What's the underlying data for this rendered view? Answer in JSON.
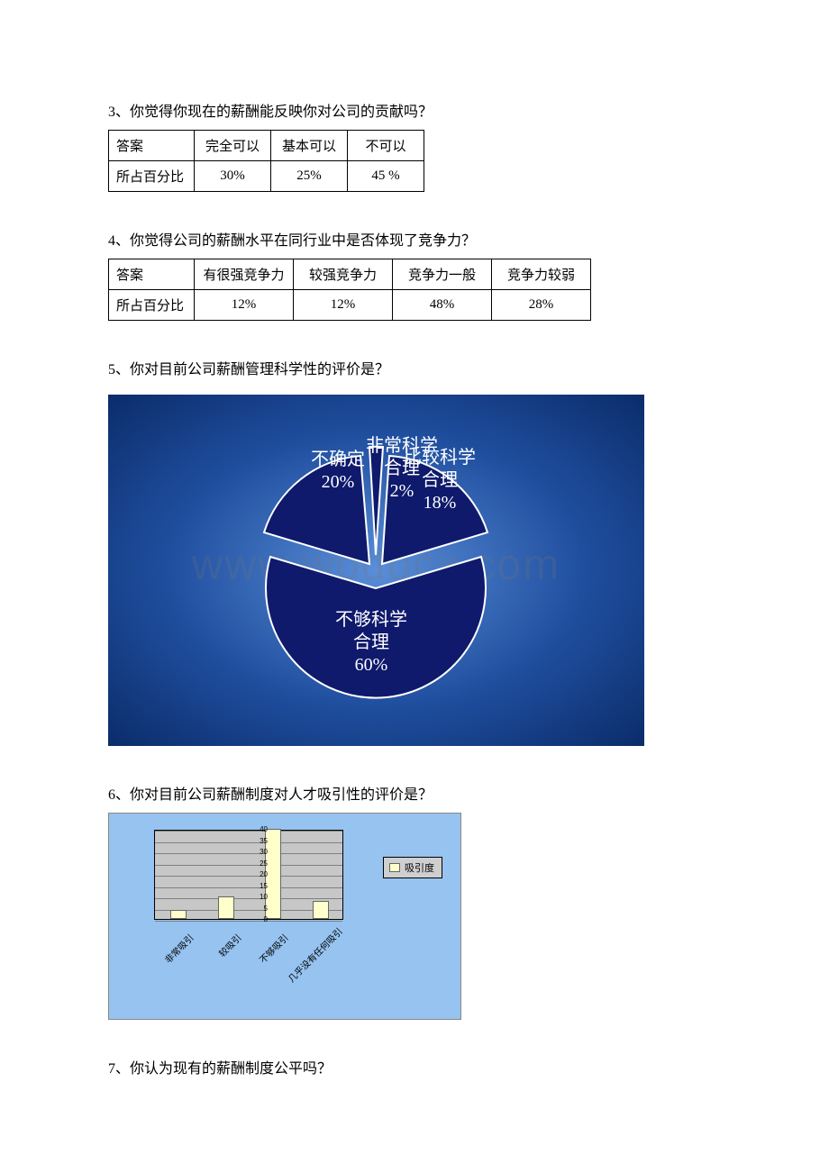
{
  "q3": {
    "title": "3、你觉得你现在的薪酬能反映你对公司的贡献吗？",
    "row1": [
      "答案",
      "完全可以",
      "基本可以",
      "不可以"
    ],
    "row2": [
      "所占百分比",
      "30%",
      "25%",
      "45 %"
    ]
  },
  "q4": {
    "title": "4、你觉得公司的薪酬水平在同行业中是否体现了竞争力？",
    "row1": [
      "答案",
      "有很强竞争力",
      "较强竞争力",
      "竞争力一般",
      "竞争力较弱"
    ],
    "row2": [
      "所占百分比",
      "12%",
      "12%",
      "48%",
      "28%"
    ]
  },
  "q5": {
    "title": "5、你对目前公司薪酬管理科学性的评价是？",
    "chart": {
      "type": "pie",
      "background": "radial #5a8ed8 -> #0b2c6a",
      "slices": [
        {
          "label_l1": "非常科学",
          "label_l2": "合理",
          "pct_label": "2%",
          "value": 2,
          "color": "#101a6b"
        },
        {
          "label_l1": "比较科学",
          "label_l2": "合理",
          "pct_label": "18%",
          "value": 18,
          "color": "#101a6b"
        },
        {
          "label_l1": "不够科学",
          "label_l2": "合理",
          "pct_label": "60%",
          "value": 60,
          "color": "#101a6b"
        },
        {
          "label_l1": "不确定",
          "label_l2": "",
          "pct_label": "20%",
          "value": 20,
          "color": "#101a6b"
        }
      ],
      "text_color": "#ffffff",
      "label_fontsize": 20,
      "watermark": "www.wodocx.com"
    }
  },
  "q6": {
    "title": "6、你对目前公司薪酬制度对人才吸引性的评价是？",
    "chart": {
      "type": "bar",
      "background_color": "#96c3f0",
      "plot_bg": "#c7c7c7",
      "bar_color": "#ffffcc",
      "grid_color": "#808080",
      "legend": "吸引度",
      "y_ticks": [
        "0",
        "5",
        "10",
        "15",
        "20",
        "25",
        "30",
        "35",
        "40"
      ],
      "ymax": 40,
      "categories": [
        "非常吸引",
        "较吸引",
        "不够吸引",
        "几乎没有任何吸引"
      ],
      "values": [
        4,
        10,
        40,
        8
      ]
    }
  },
  "q7": {
    "title": "7、你认为现有的薪酬制度公平吗？"
  }
}
